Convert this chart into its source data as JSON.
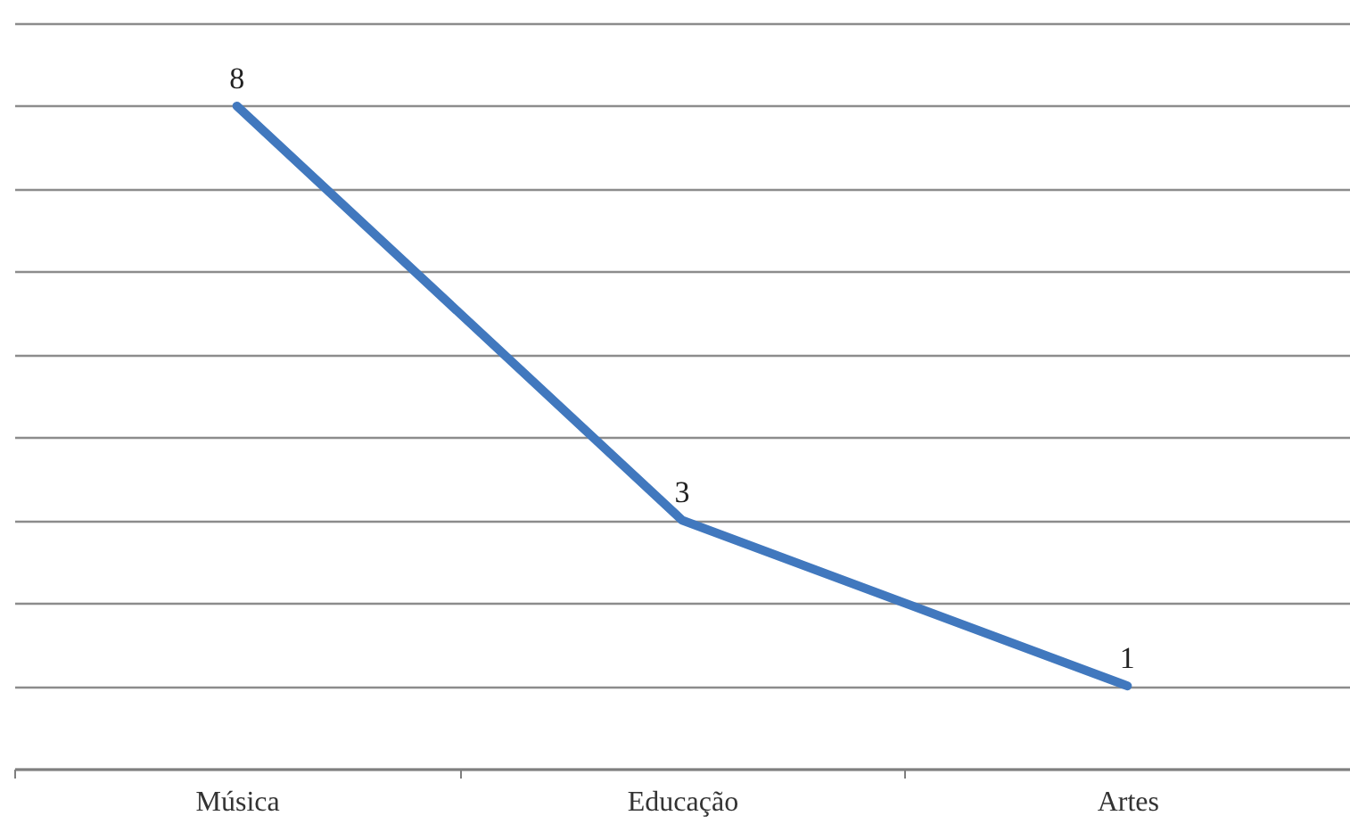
{
  "chart_data": {
    "type": "line",
    "categories": [
      "Música",
      "Educação",
      "Artes"
    ],
    "values": [
      8,
      3,
      1
    ],
    "color": "#4178be",
    "ylim": [
      0,
      9
    ],
    "yticks": [
      0,
      1,
      2,
      3,
      4,
      5,
      6,
      7,
      8,
      9
    ],
    "tick_labels": "x",
    "grid": "y",
    "data_labels": true,
    "marker": "none",
    "line_style": "solid"
  }
}
